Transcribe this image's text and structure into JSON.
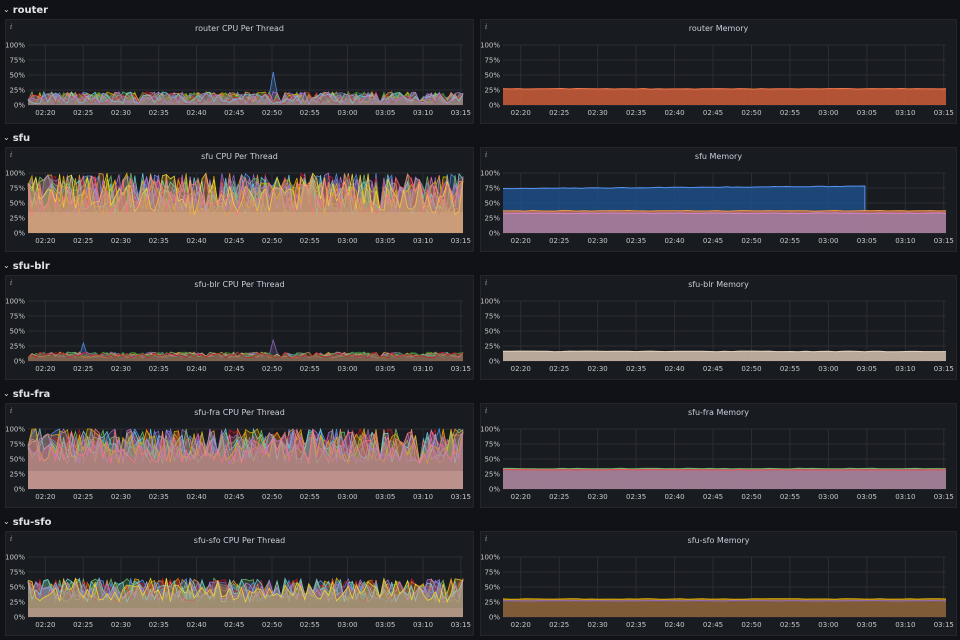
{
  "rows": [
    {
      "title": "router",
      "panels": [
        {
          "title": "router CPU Per Thread",
          "info": "i",
          "kind": "cpu",
          "level": 0.12,
          "noise": 0.1,
          "spike": 0.55,
          "spike_at": "02:50",
          "colors": [
            "#b5a047",
            "#5794f2",
            "#73bf69",
            "#8e6bc4",
            "#f2994a",
            "#e0b400",
            "#37872d",
            "#c4162a",
            "#6ed0e0",
            "#b877d9"
          ]
        },
        {
          "title": "router Memory",
          "info": "i",
          "kind": "mem",
          "bands": [
            {
              "value": 0.27,
              "color": "#f2784b",
              "fill": "#c45a38"
            }
          ]
        }
      ]
    },
    {
      "title": "sfu",
      "panels": [
        {
          "title": "sfu CPU Per Thread",
          "info": "i",
          "kind": "cpu",
          "level": 0.65,
          "noise": 0.35,
          "base": 0.35,
          "base_color": "#cbc2a4",
          "colors": [
            "#5794f2",
            "#f2994a",
            "#c4162a",
            "#8e6bc4",
            "#73bf69",
            "#6ed0e0",
            "#e0b400",
            "#b877d9",
            "#fade2a",
            "#ff7383"
          ]
        },
        {
          "title": "sfu Memory",
          "info": "i",
          "kind": "mem",
          "bands": [
            {
              "value": 0.74,
              "color": "#5794f2",
              "fill": "#1f4d87",
              "end_at": "03:05"
            },
            {
              "value": 0.37,
              "color": "#f2994a",
              "fill": "#b36c55"
            },
            {
              "value": 0.33,
              "color": "#d683ce",
              "fill": "#9d7a9c"
            }
          ]
        }
      ]
    },
    {
      "title": "sfu-blr",
      "panels": [
        {
          "title": "sfu-blr CPU Per Thread",
          "info": "i",
          "kind": "cpu",
          "level": 0.1,
          "noise": 0.05,
          "spike": 0.3,
          "spike_at": "02:25",
          "spike2": 0.35,
          "spike2_at": "02:50",
          "colors": [
            "#b5a047",
            "#5794f2",
            "#73bf69",
            "#8e6bc4",
            "#f2994a",
            "#37872d",
            "#c4162a"
          ]
        },
        {
          "title": "sfu-blr Memory",
          "info": "i",
          "kind": "mem",
          "bands": [
            {
              "value": 0.16,
              "color": "#e5d6c1",
              "fill": "#c9b8a6"
            }
          ]
        }
      ]
    },
    {
      "title": "sfu-fra",
      "panels": [
        {
          "title": "sfu-fra CPU Per Thread",
          "info": "i",
          "kind": "cpu",
          "level": 0.72,
          "noise": 0.3,
          "base": 0.3,
          "base_color": "#d3c9ab",
          "colors": [
            "#5794f2",
            "#f2994a",
            "#c4162a",
            "#8e6bc4",
            "#73bf69",
            "#6ed0e0",
            "#e0b400",
            "#b877d9",
            "#ff7383"
          ]
        },
        {
          "title": "sfu-fra Memory",
          "info": "i",
          "kind": "mem",
          "bands": [
            {
              "value": 0.34,
              "color": "#73bf69",
              "fill": "#8a6e89"
            },
            {
              "value": 0.32,
              "color": "#f2495c",
              "fill": "#a17d93"
            }
          ]
        }
      ]
    },
    {
      "title": "sfu-sfo",
      "panels": [
        {
          "title": "sfu-sfo CPU Per Thread",
          "info": "i",
          "kind": "cpu",
          "level": 0.45,
          "noise": 0.2,
          "base": 0.15,
          "base_color": "#8f4fa0",
          "colors": [
            "#e0b400",
            "#f2994a",
            "#73bf69",
            "#5794f2",
            "#c4162a",
            "#6ed0e0",
            "#b877d9",
            "#fade2a"
          ]
        },
        {
          "title": "sfu-sfo Memory",
          "info": "i",
          "kind": "mem",
          "bands": [
            {
              "value": 0.3,
              "color": "#e0b400",
              "fill": "#a9722c"
            },
            {
              "value": 0.27,
              "color": "#8e6bc4",
              "fill": "#7d5a3a"
            }
          ]
        }
      ]
    }
  ],
  "axis": {
    "y_ticks": [
      "0%",
      "25%",
      "50%",
      "75%",
      "100%"
    ],
    "x_ticks": [
      "02:20",
      "02:25",
      "02:30",
      "02:35",
      "02:40",
      "02:45",
      "02:50",
      "02:55",
      "03:00",
      "03:05",
      "03:10",
      "03:15"
    ]
  }
}
